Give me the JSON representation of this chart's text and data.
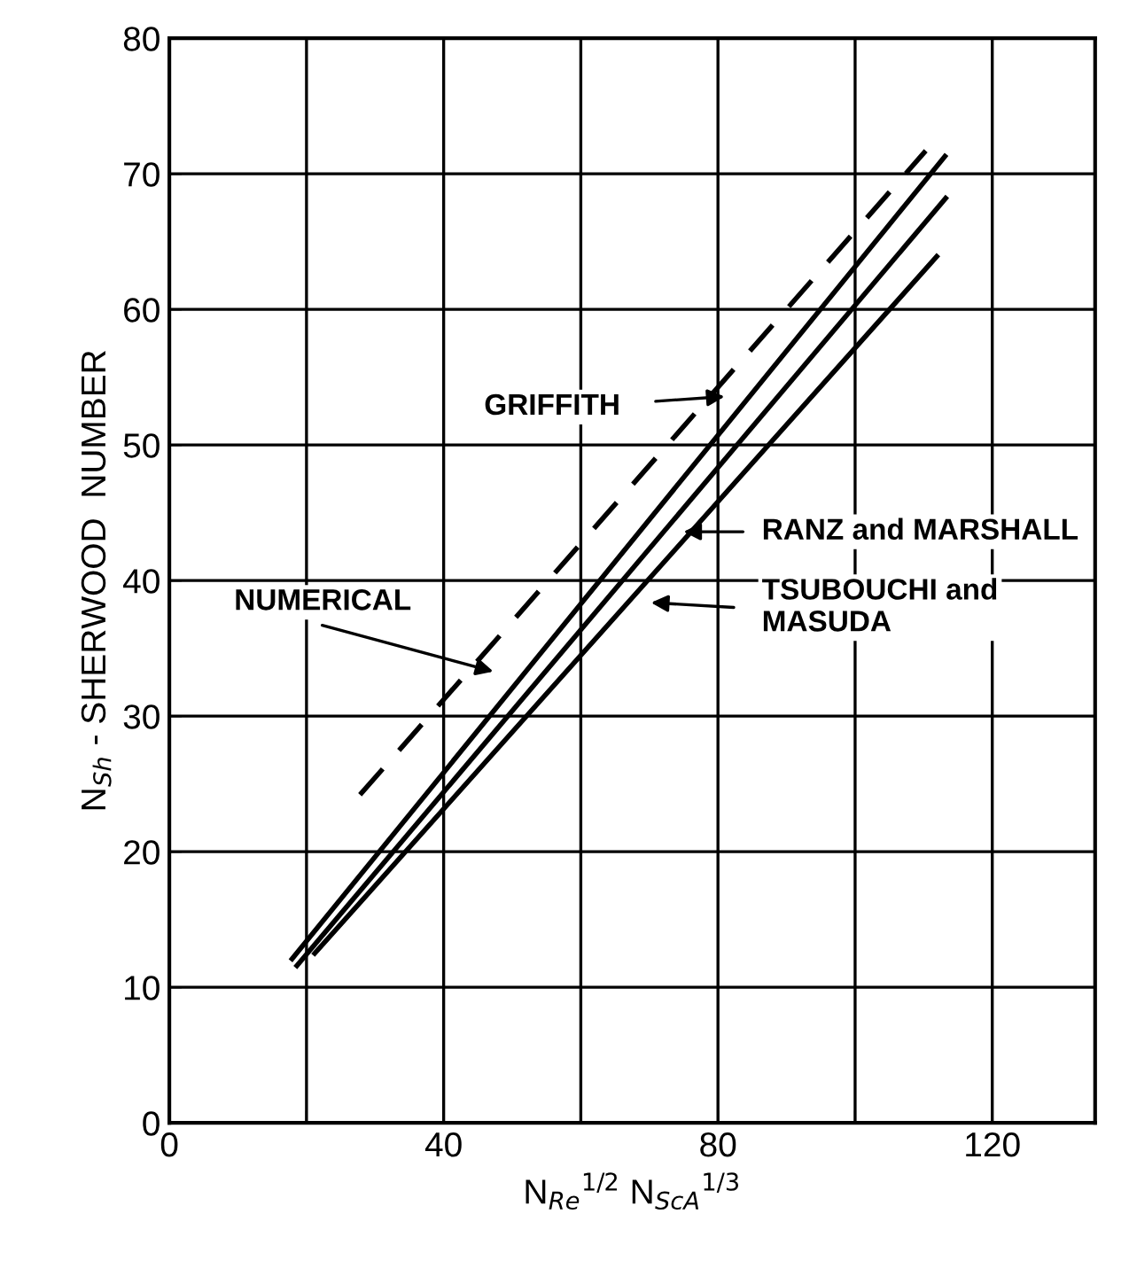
{
  "chart_data": {
    "type": "line",
    "xlabel": "N$_{Re}$$^{1/2}$ N$_{ScA}$$^{1/3}$",
    "ylabel": "N$_{Sh}$ - SHERWOOD  NUMBER",
    "series": [
      {
        "color": "#000000",
        "line_style": "solid",
        "x": [
          17.9,
          113.1
        ],
        "values": [
          12.1,
          71.3
        ]
      },
      {
        "color": "#000000",
        "line_style": "solid",
        "x": [
          18.6,
          113.2
        ],
        "values": [
          11.6,
          68.2
        ]
      },
      {
        "color": "#000000",
        "line_style": "solid",
        "x": [
          21.2,
          111.9
        ],
        "values": [
          12.5,
          63.9
        ]
      },
      {
        "color": "#000000",
        "line_style": "dashed",
        "x": [
          27.8,
          110.3
        ],
        "values": [
          24.2,
          71.7
        ]
      }
    ],
    "annotations": [
      "GRIFFITH",
      "RANZ and MARSHALL",
      "TSUBOUCHI and\nMASUDA",
      "NUMERICAL"
    ],
    "xlim": [
      0,
      135
    ],
    "xticks": [
      0,
      {
        "value": 20,
        "label": null
      },
      40,
      {
        "value": 60,
        "label": null
      },
      80,
      {
        "value": 100,
        "label": null
      },
      120
    ],
    "ylim": [
      0,
      80
    ],
    "yticks": [
      0,
      10,
      20,
      30,
      40,
      50,
      60,
      70,
      80
    ],
    "grid": true,
    "marker": "none",
    "legend": false
  }
}
